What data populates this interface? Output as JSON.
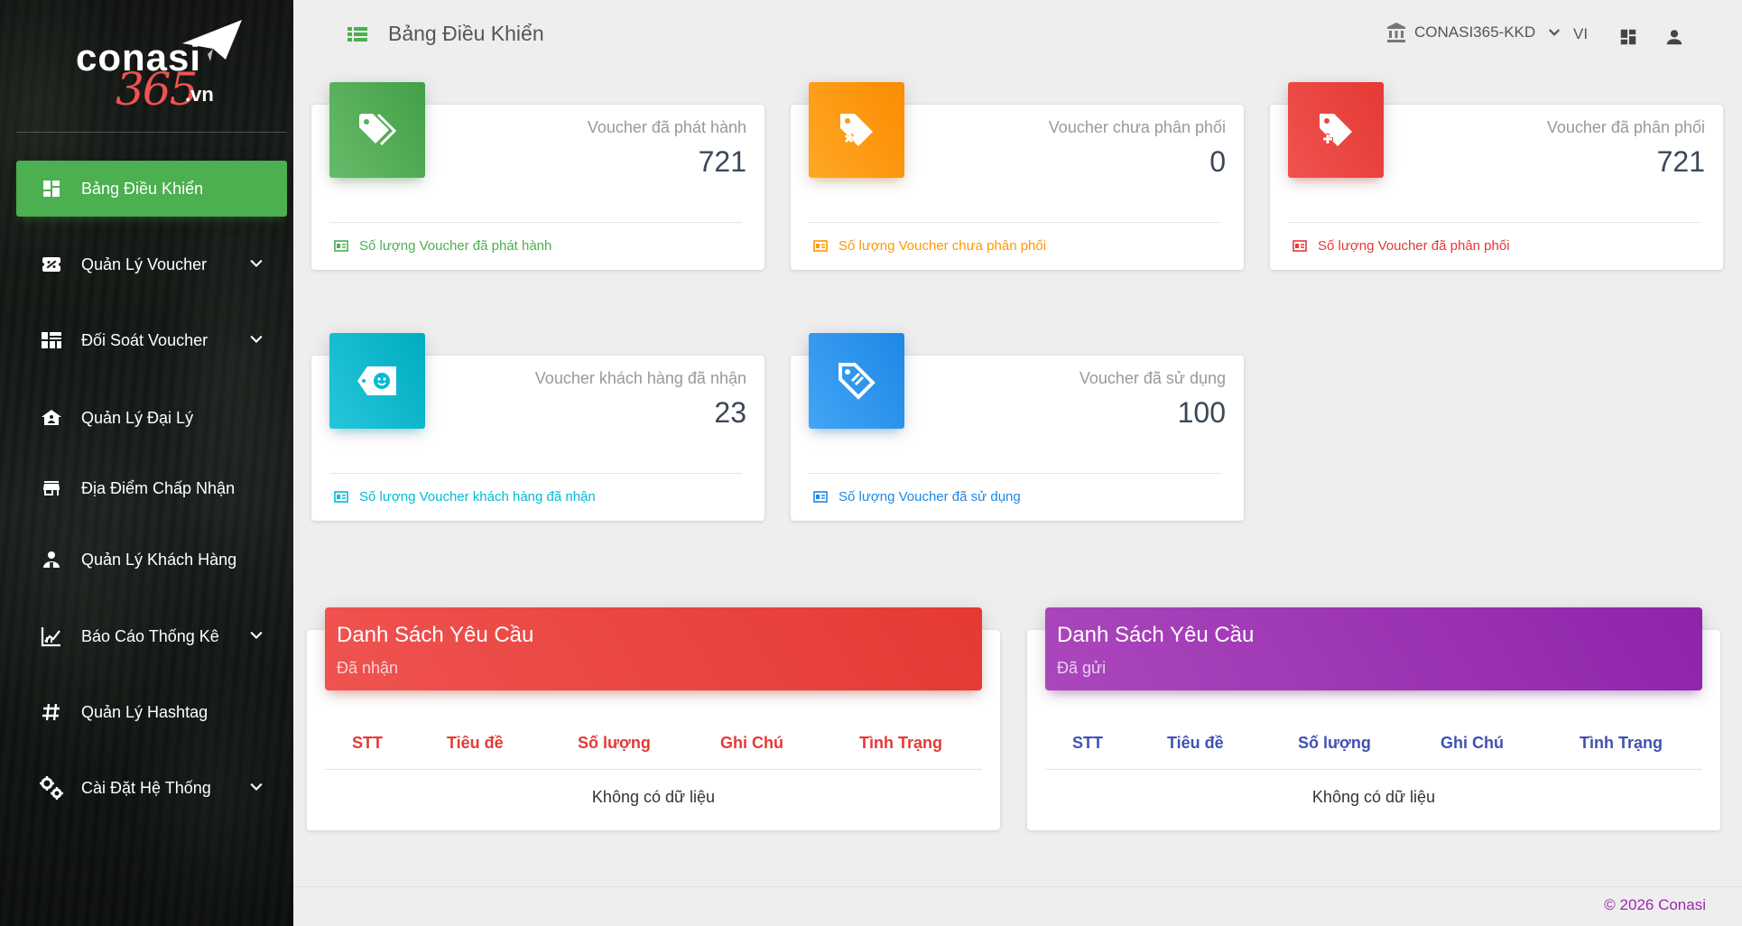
{
  "logo": {
    "word1": "conasi",
    "word2": "365",
    "word3": ".vn"
  },
  "sidebar": {
    "items": [
      {
        "label": "Bảng Điều Khiển",
        "icon": "dashboard-icon",
        "active": true
      },
      {
        "label": "Quản Lý Voucher",
        "icon": "ticket-percent-icon",
        "expandable": true
      },
      {
        "label": "Đối Soát Voucher",
        "icon": "table-icon",
        "expandable": true
      },
      {
        "label": "Quản Lý Đại Lý",
        "icon": "home-icon"
      },
      {
        "label": "Địa Điểm Chấp Nhận",
        "icon": "store-icon"
      },
      {
        "label": "Quản Lý Khách Hàng",
        "icon": "customer-icon"
      },
      {
        "label": "Báo Cáo Thống Kê",
        "icon": "chart-icon",
        "expandable": true
      },
      {
        "label": "Quản Lý Hashtag",
        "icon": "hashtag-icon"
      },
      {
        "label": "Cài Đặt Hệ Thống",
        "icon": "settings-icon",
        "expandable": true
      }
    ]
  },
  "header": {
    "title": "Bảng Điều Khiển",
    "account": "CONASI365-KKD",
    "language": "VI"
  },
  "stats": [
    {
      "label": "Voucher đã phát hành",
      "value": "721",
      "footer": "Số lượng Voucher đã phát hành",
      "color": "#4caf50"
    },
    {
      "label": "Voucher chưa phân phối",
      "value": "0",
      "footer": "Số lượng Voucher chưa phân phối",
      "color": "#ff9800"
    },
    {
      "label": "Voucher đã phân phối",
      "value": "721",
      "footer": "Số lượng Voucher đã phân phối",
      "color": "#e53935"
    },
    {
      "label": "Voucher khách hàng đã nhận",
      "value": "23",
      "footer": "Số lượng Voucher khách hàng đã nhận",
      "color": "#00bcd4"
    },
    {
      "label": "Voucher đã sử dụng",
      "value": "100",
      "footer": "Số lượng Voucher đã sử dụng",
      "color": "#1e88e5"
    }
  ],
  "tables": [
    {
      "title": "Danh Sách Yêu Cầu",
      "subtitle": "Đã nhận",
      "color": "#e53935",
      "columns": [
        "STT",
        "Tiêu đề",
        "Số lượng",
        "Ghi Chú",
        "Tình Trạng"
      ],
      "empty": "Không có dữ liệu"
    },
    {
      "title": "Danh Sách Yêu Cầu",
      "subtitle": "Đã gửi",
      "color": "#9c27b0",
      "columns": [
        "STT",
        "Tiêu đề",
        "Số lượng",
        "Ghi Chú",
        "Tình Trạng"
      ],
      "empty": "Không có dữ liệu"
    }
  ],
  "footer": {
    "copyright": "© 2026 Conasi"
  }
}
